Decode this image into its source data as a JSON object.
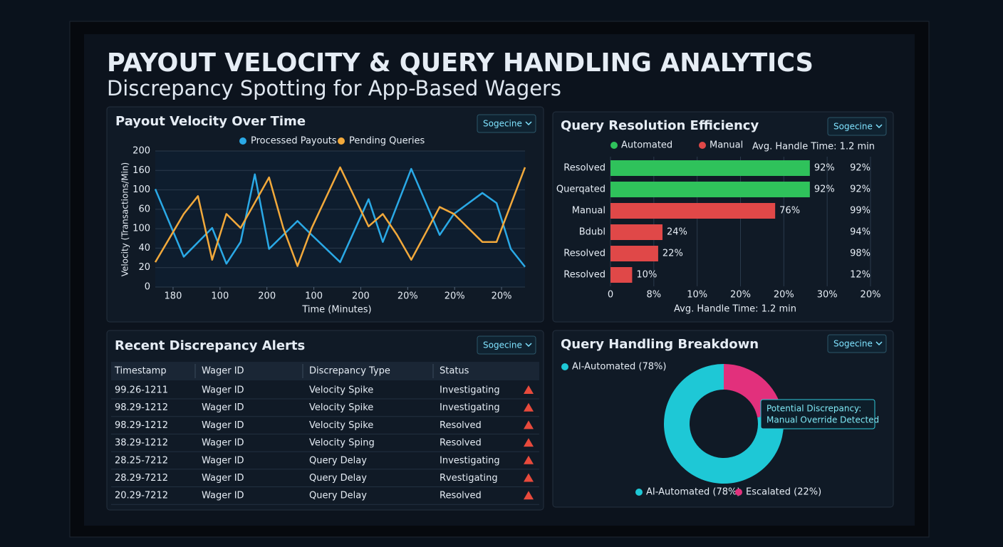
{
  "header": {
    "title": "PAYOUT VELOCITY & QUERY HANDLING ANALYTICS",
    "subtitle": "Discrepancy Spotting for App-Based Wagers"
  },
  "chart_data": [
    {
      "type": "line",
      "title": "Payout Velocity Over Time",
      "dropdown": "Sogecine",
      "xlabel": "Time (Minutes)",
      "ylabel": "Velocity (Transactions/Min)",
      "xlim": [
        0,
        26
      ],
      "xticks": [
        {
          "value": 1.25,
          "label": "180"
        },
        {
          "value": 4.55,
          "label": "100"
        },
        {
          "value": 7.85,
          "label": "200"
        },
        {
          "value": 11.15,
          "label": "100"
        },
        {
          "value": 14.45,
          "label": "200"
        },
        {
          "value": 17.75,
          "label": "20%"
        },
        {
          "value": 21.05,
          "label": "20%"
        },
        {
          "value": 24.35,
          "label": "20%"
        }
      ],
      "ylim": [
        0,
        175
      ],
      "yticks": [
        0,
        {
          "value": 25,
          "label": "20"
        },
        {
          "value": 50,
          "label": "40"
        },
        {
          "value": 75,
          "label": "100"
        },
        {
          "value": 100,
          "label": "60"
        },
        {
          "value": 125,
          "label": "100"
        },
        {
          "value": 150,
          "label": "160"
        },
        {
          "value": 175,
          "label": "200"
        }
      ],
      "grid": true,
      "series": [
        {
          "name": "Processed Payouts",
          "color": "#2aa9e6",
          "x": [
            0,
            2,
            4,
            5,
            6,
            7,
            8,
            10,
            11,
            13,
            15,
            16,
            18,
            20,
            21,
            23,
            24,
            25,
            26
          ],
          "values": [
            126,
            39,
            76,
            30,
            58,
            145,
            49,
            85,
            67,
            32,
            113,
            58,
            152,
            67,
            94,
            121,
            108,
            49,
            26
          ]
        },
        {
          "name": "Pending Queries",
          "color": "#f2a93b",
          "x": [
            0,
            2,
            3,
            4,
            5,
            6,
            8,
            9,
            10,
            11,
            13,
            15,
            16,
            17,
            18,
            20,
            21,
            23,
            24,
            26
          ],
          "values": [
            32,
            94,
            117,
            35,
            94,
            76,
            141,
            76,
            27,
            76,
            154,
            78,
            94,
            67,
            35,
            103,
            94,
            58,
            58,
            154
          ]
        }
      ]
    },
    {
      "type": "bar",
      "orientation": "horizontal",
      "title": "Query Resolution Efficiency",
      "dropdown": "Sogecine",
      "note": "Avg. Handle Time: 1.2 min",
      "xlabel": "Avg. Handle Time: 1.2 min",
      "legend": [
        {
          "name": "Automated",
          "color": "#2fc25b"
        },
        {
          "name": "Manual",
          "color": "#e04848"
        }
      ],
      "categories": [
        "Resolved",
        "Querqated",
        "Manual",
        "Bdubl",
        "Resolved",
        "Resolved"
      ],
      "values": [
        92,
        92,
        76,
        24,
        22,
        10
      ],
      "value_labels": [
        "92%",
        "92%",
        "76%",
        "24%",
        "22%",
        "10%"
      ],
      "colors": [
        "#2fc25b",
        "#2fc25b",
        "#e04848",
        "#e04848",
        "#e04848",
        "#e04848"
      ],
      "right_labels": [
        "92%",
        "92%",
        "99%",
        "94%",
        "98%",
        "12%"
      ],
      "xlim": [
        0,
        120
      ],
      "xticks": [
        0,
        {
          "value": 20,
          "label": "8%"
        },
        {
          "value": 40,
          "label": "10%"
        },
        {
          "value": 60,
          "label": "20%"
        },
        {
          "value": 80,
          "label": "20%"
        },
        {
          "value": 100,
          "label": "30%"
        },
        {
          "value": 120,
          "label": "20%"
        }
      ],
      "grid": true
    },
    {
      "type": "pie",
      "hole": true,
      "title": "Query Handling Breakdown",
      "dropdown": "Sogecine",
      "labels": [
        "AI-Automated (78%)",
        "Escalated (22%)"
      ],
      "values": [
        78,
        22
      ],
      "colors": [
        "#1ec8d6",
        "#e2307c"
      ],
      "annotation": [
        "Potential Discrepancy:",
        "Manual Override Detected"
      ]
    }
  ],
  "alerts": {
    "title": "Recent Discrepancy Alerts",
    "dropdown": "Sogecine",
    "columns": [
      "Timestamp",
      "Wager ID",
      "Discrepancy Type",
      "Status"
    ],
    "rows": [
      [
        "99.26-1211",
        "Wager ID",
        "Velocity Spike",
        "Investigating"
      ],
      [
        "98.29-1212",
        "Wager ID",
        "Velocity Spike",
        "Investigating"
      ],
      [
        "98.29-1212",
        "Wager ID",
        "Velocity Spike",
        "Resolved"
      ],
      [
        "38.29-1212",
        "Wager ID",
        "Velocity Sping",
        "Resolved"
      ],
      [
        "28.25-7212",
        "Wager ID",
        "Query Delay",
        "Investigating"
      ],
      [
        "28.29-7212",
        "Wager ID",
        "Query Delay",
        "Rvestigating"
      ],
      [
        "20.29-7212",
        "Wager ID",
        "Query Delay",
        "Resolved"
      ]
    ]
  }
}
